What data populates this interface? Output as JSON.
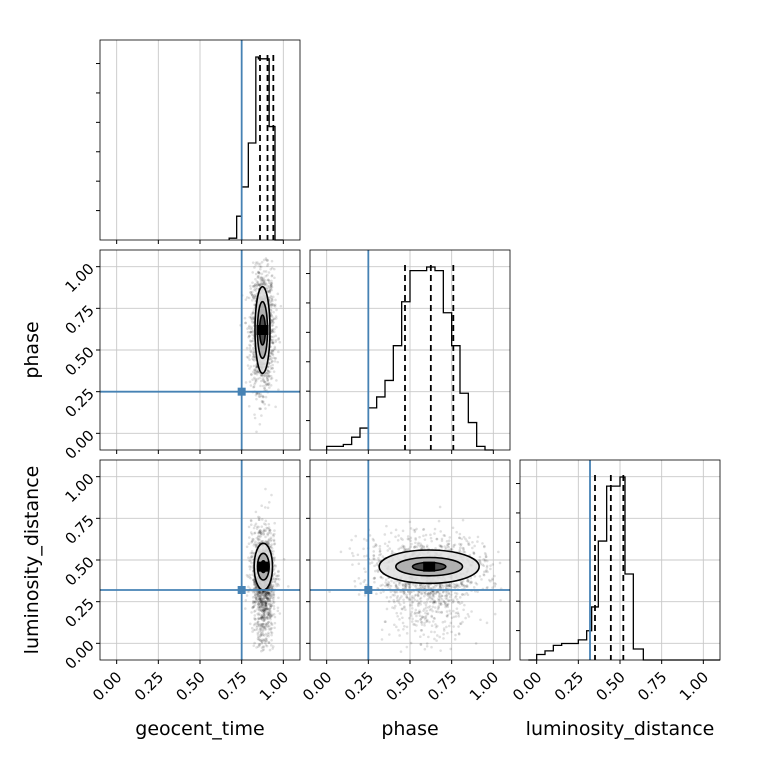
{
  "chart_data": {
    "type": "corner",
    "parameters": [
      {
        "name": "geocent_time",
        "label": "geocent_time"
      },
      {
        "name": "phase",
        "label": "phase"
      },
      {
        "name": "luminosity_distance",
        "label": "luminosity_distance"
      }
    ],
    "truth_values": [
      0.75,
      0.25,
      0.32
    ],
    "truth_color": "#4682b4",
    "axis_range": [
      -0.1,
      1.1
    ],
    "tick_values": [
      0.0,
      0.25,
      0.5,
      0.75,
      1.0
    ],
    "tick_labels": [
      "0.00",
      "0.25",
      "0.50",
      "0.75",
      "1.00"
    ],
    "grid": true,
    "quantiles": [
      [
        0.86,
        0.905,
        0.94
      ],
      [
        0.47,
        0.625,
        0.76
      ],
      [
        0.35,
        0.445,
        0.52
      ]
    ],
    "histograms": [
      {
        "param": "geocent_time",
        "bin_edges": [
          0.675,
          0.72,
          0.75,
          0.79,
          0.835,
          0.85,
          0.915,
          0.95,
          1.0
        ],
        "counts": [
          0.01,
          0.13,
          0.29,
          0.53,
          1.0,
          0.99,
          0.62,
          0.0
        ]
      },
      {
        "param": "phase",
        "bin_edges": [
          0.0,
          0.1,
          0.15,
          0.2,
          0.25,
          0.3,
          0.35,
          0.4,
          0.45,
          0.5,
          0.55,
          0.6,
          0.65,
          0.7,
          0.75,
          0.8,
          0.85,
          0.9,
          0.95,
          1.0
        ],
        "counts": [
          0.02,
          0.03,
          0.07,
          0.12,
          0.23,
          0.29,
          0.38,
          0.57,
          0.81,
          0.98,
          0.98,
          1.0,
          0.98,
          0.75,
          0.57,
          0.31,
          0.15,
          0.02,
          0.0
        ]
      },
      {
        "param": "luminosity_distance",
        "bin_edges": [
          -0.05,
          0.0,
          0.05,
          0.1,
          0.15,
          0.2,
          0.25,
          0.3,
          0.33,
          0.37,
          0.42,
          0.5,
          0.53,
          0.58,
          0.64,
          1.1
        ],
        "counts": [
          0.0,
          0.03,
          0.05,
          0.08,
          0.09,
          0.09,
          0.11,
          0.16,
          0.29,
          0.65,
          0.95,
          1.0,
          0.47,
          0.06,
          0.0
        ]
      }
    ],
    "joint_panels": [
      {
        "x_param": "geocent_time",
        "y_param": "phase",
        "center": [
          0.875,
          0.62
        ],
        "spread": [
          0.035,
          0.18
        ],
        "contour_radii": [
          [
            0.045,
            0.26
          ],
          [
            0.03,
            0.17
          ],
          [
            0.017,
            0.09
          ]
        ]
      },
      {
        "x_param": "geocent_time",
        "y_param": "luminosity_distance",
        "center": [
          0.88,
          0.46
        ],
        "spread": [
          0.035,
          0.13
        ],
        "contour_radii": [
          [
            0.055,
            0.14
          ],
          [
            0.035,
            0.08
          ],
          [
            0.015,
            0.035
          ]
        ]
      },
      {
        "x_param": "phase",
        "y_param": "luminosity_distance",
        "center": [
          0.615,
          0.46
        ],
        "spread": [
          0.18,
          0.1
        ],
        "contour_radii": [
          [
            0.3,
            0.1
          ],
          [
            0.2,
            0.055
          ],
          [
            0.1,
            0.025
          ]
        ]
      }
    ]
  }
}
